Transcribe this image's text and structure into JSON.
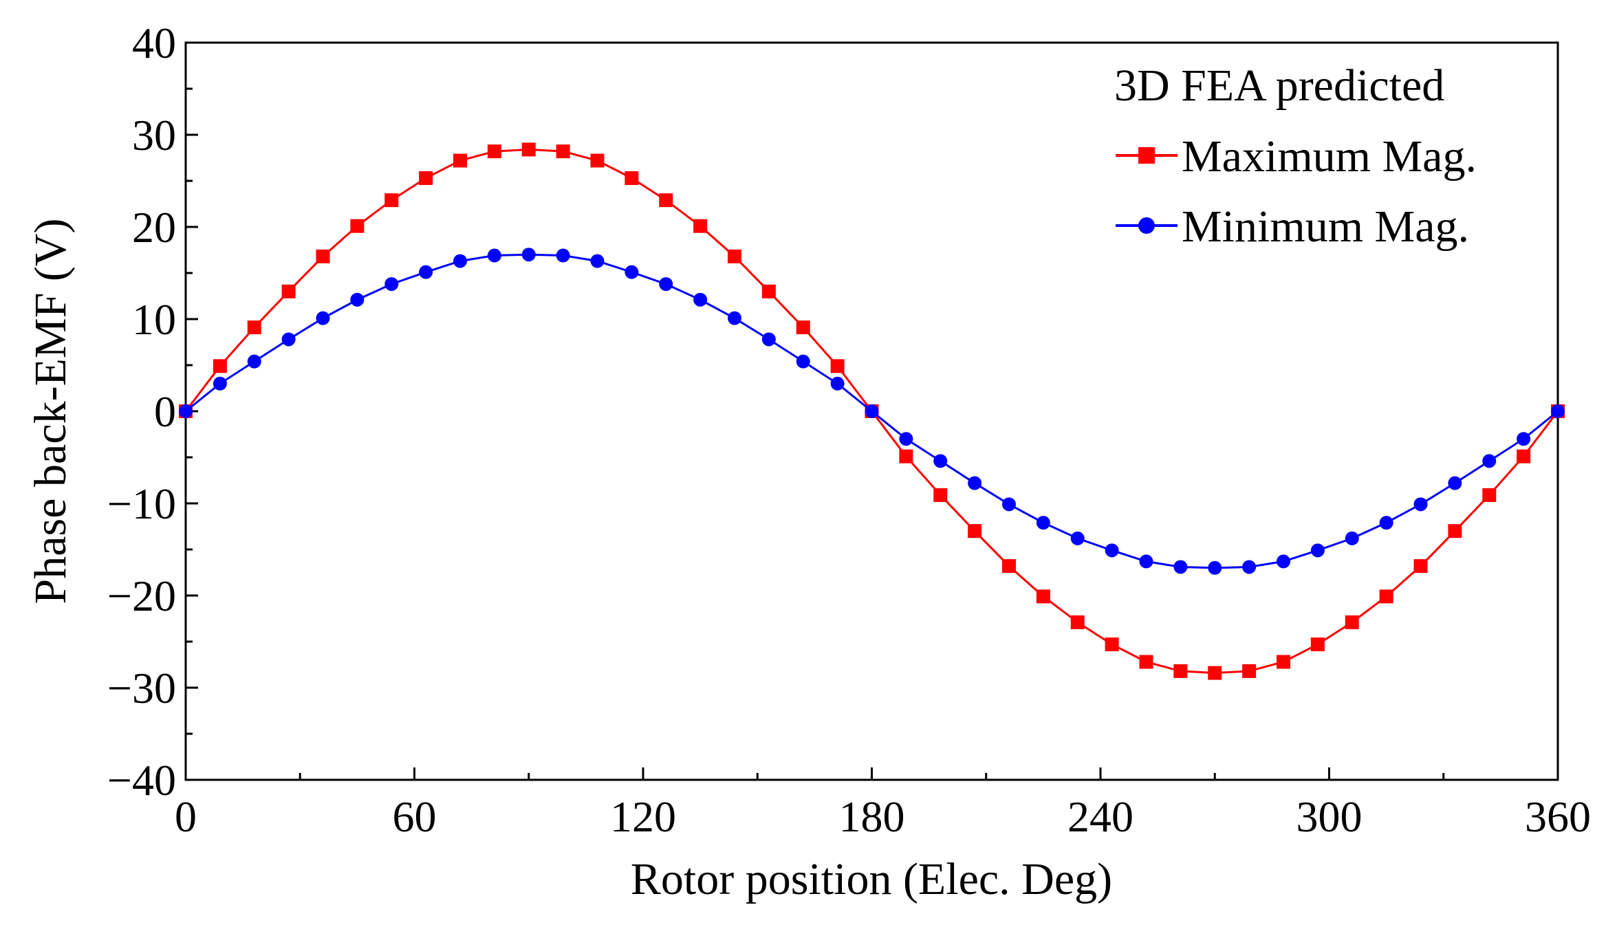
{
  "chart_data": {
    "type": "line",
    "title": "",
    "xlabel": "Rotor position (Elec. Deg)",
    "ylabel": "Phase back-EMF (V)",
    "xlim": [
      0,
      360
    ],
    "ylim": [
      -40,
      40
    ],
    "xticks": [
      0,
      60,
      120,
      180,
      240,
      300,
      360
    ],
    "yticks": [
      -40,
      -30,
      -20,
      -10,
      0,
      10,
      20,
      30,
      40
    ],
    "grid": false,
    "legend": {
      "title": "3D FEA predicted",
      "position": "top-right"
    },
    "x": [
      0,
      9,
      18,
      27,
      36,
      45,
      54,
      63,
      72,
      81,
      90,
      99,
      108,
      117,
      126,
      135,
      144,
      153,
      162,
      171,
      180,
      189,
      198,
      207,
      216,
      225,
      234,
      243,
      252,
      261,
      270,
      279,
      288,
      297,
      306,
      315,
      324,
      333,
      342,
      351,
      360
    ],
    "series": [
      {
        "name": "Maximum Mag.",
        "color": "#ff0000",
        "marker": "square",
        "values": [
          0,
          4.9,
          9.1,
          13.0,
          16.8,
          20.1,
          22.9,
          25.3,
          27.2,
          28.2,
          28.4,
          28.2,
          27.2,
          25.3,
          22.9,
          20.1,
          16.8,
          13.0,
          9.1,
          4.9,
          0,
          -4.9,
          -9.1,
          -13.0,
          -16.8,
          -20.1,
          -22.9,
          -25.3,
          -27.2,
          -28.2,
          -28.4,
          -28.2,
          -27.2,
          -25.3,
          -22.9,
          -20.1,
          -16.8,
          -13.0,
          -9.1,
          -4.9,
          0
        ]
      },
      {
        "name": "Minimum Mag.",
        "color": "#0000ff",
        "marker": "circle",
        "values": [
          0,
          3.0,
          5.4,
          7.8,
          10.1,
          12.1,
          13.8,
          15.1,
          16.3,
          16.9,
          17.0,
          16.9,
          16.3,
          15.1,
          13.8,
          12.1,
          10.1,
          7.8,
          5.4,
          3.0,
          0,
          -3.0,
          -5.4,
          -7.8,
          -10.1,
          -12.1,
          -13.8,
          -15.1,
          -16.3,
          -16.9,
          -17.0,
          -16.9,
          -16.3,
          -15.1,
          -13.8,
          -12.1,
          -10.1,
          -7.8,
          -5.4,
          -3.0,
          0
        ]
      }
    ]
  }
}
